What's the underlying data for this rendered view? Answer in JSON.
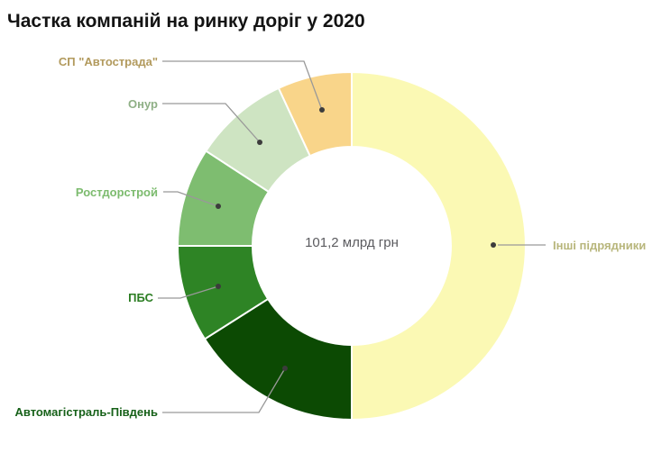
{
  "chart_data": {
    "type": "pie",
    "subtype": "donut",
    "title": "Частка компаній на ринку доріг у 2020",
    "center_total": "101,2 млрд грн",
    "legend_position": "outside-callout-labels",
    "start_angle_deg": 0,
    "direction": "clockwise",
    "slices": [
      {
        "label": "Інші підрядники",
        "share_pct_est": 50.0,
        "value_est_mlrd_grn": 50.6,
        "color": "#fbf9b4",
        "label_color": "#b8b67c"
      },
      {
        "label": "Автомагістраль-Південь",
        "share_pct_est": 16.0,
        "value_est_mlrd_grn": 16.2,
        "color": "#0c4a03",
        "label_color": "#176119"
      },
      {
        "label": "ПБС",
        "share_pct_est": 9.0,
        "value_est_mlrd_grn": 9.1,
        "color": "#2e8425",
        "label_color": "#2b7d22"
      },
      {
        "label": "Ростдорстрой",
        "share_pct_est": 9.2,
        "value_est_mlrd_grn": 9.3,
        "color": "#7ebd70",
        "label_color": "#7cbb6e"
      },
      {
        "label": "Онур",
        "share_pct_est": 8.9,
        "value_est_mlrd_grn": 9.0,
        "color": "#cee4c2",
        "label_color": "#8fb086"
      },
      {
        "label": "СП \"Автострада\"",
        "share_pct_est": 6.9,
        "value_est_mlrd_grn": 7.0,
        "color": "#f9d58a",
        "label_color": "#b29a5d"
      }
    ]
  }
}
